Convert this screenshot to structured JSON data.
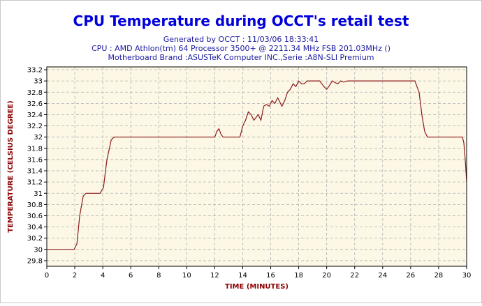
{
  "window": {
    "title": "CPU Temperature during OCCT's retail test",
    "subtitle_lines": [
      "Generated by OCCT : 11/03/06 18:33:41",
      "CPU : AMD Athlon(tm) 64 Processor 3500+ @ 2211.34 MHz FSB 201.03MHz ()",
      "Motherboard Brand :ASUSTeK Computer INC.,Serie :A8N-SLI Premium"
    ]
  },
  "colors": {
    "title": "#0000dd",
    "subtitle": "#1a1aa0",
    "line": "#8b1a1a",
    "plot_bg": "#fdf8e6",
    "axis_label": "#8b0000"
  },
  "chart_data": {
    "type": "line",
    "title": "CPU Temperature during OCCT's retail test",
    "xlabel": "TIME (MINUTES)",
    "ylabel": "TEMPERATURE (CELSIUS DEGREE)",
    "xlim": [
      0,
      30
    ],
    "ylim": [
      29.7,
      33.25
    ],
    "grid": true,
    "x_ticks": [
      0,
      2,
      4,
      6,
      8,
      10,
      12,
      14,
      16,
      18,
      20,
      22,
      24,
      26,
      28,
      30
    ],
    "y_ticks": [
      "29.8",
      "30",
      "30.2",
      "30.4",
      "30.6",
      "30.8",
      "31",
      "31.2",
      "31.4",
      "31.6",
      "31.8",
      "32",
      "32.2",
      "32.4",
      "32.6",
      "32.8",
      "33",
      "33.2"
    ],
    "series": [
      {
        "values_x": [
          0,
          1.95,
          2.15,
          2.35,
          2.6,
          2.8,
          3.8,
          4.05,
          4.3,
          4.6,
          4.8,
          12.0,
          12.15,
          12.3,
          12.45,
          12.6,
          12.8,
          13.0,
          13.8,
          14.0,
          14.2,
          14.4,
          14.6,
          14.8,
          14.95,
          15.1,
          15.3,
          15.5,
          15.7,
          15.9,
          16.1,
          16.3,
          16.5,
          16.8,
          17.0,
          17.2,
          17.4,
          17.6,
          17.8,
          18.0,
          18.2,
          18.4,
          18.6,
          18.8,
          19.0,
          19.5,
          19.8,
          20.0,
          20.2,
          20.4,
          20.6,
          20.8,
          21.0,
          21.2,
          21.5,
          26.3,
          26.6,
          26.8,
          27.0,
          27.2,
          29.7,
          29.8,
          29.9,
          30.0
        ],
        "values_y": [
          30.0,
          30.0,
          30.1,
          30.6,
          30.95,
          31.0,
          31.0,
          31.1,
          31.6,
          31.95,
          32.0,
          32.0,
          32.1,
          32.15,
          32.05,
          32.0,
          32.0,
          32.0,
          32.0,
          32.2,
          32.3,
          32.45,
          32.4,
          32.3,
          32.35,
          32.4,
          32.3,
          32.55,
          32.58,
          32.55,
          32.65,
          32.6,
          32.7,
          32.55,
          32.65,
          32.8,
          32.85,
          32.95,
          32.9,
          33.0,
          32.95,
          32.95,
          33.0,
          33.0,
          33.0,
          33.0,
          32.9,
          32.85,
          32.92,
          33.0,
          32.97,
          32.95,
          33.0,
          32.98,
          33.0,
          33.0,
          32.8,
          32.4,
          32.1,
          32.0,
          32.0,
          31.9,
          31.6,
          31.2
        ]
      }
    ]
  }
}
